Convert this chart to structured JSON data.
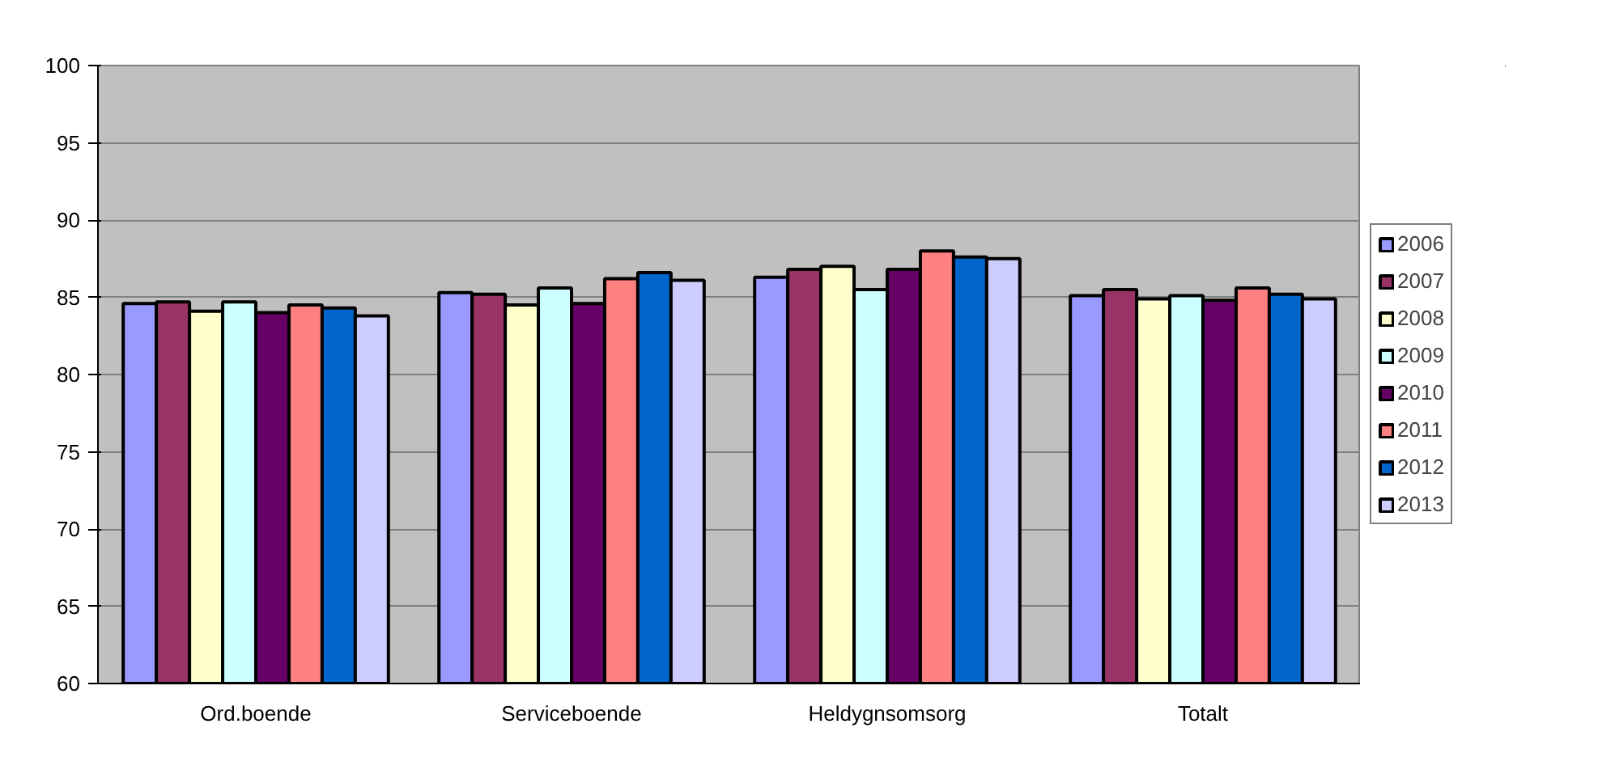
{
  "chart_data": {
    "type": "bar",
    "categories": [
      "Ord.boende",
      "Serviceboende",
      "Heldygnsomsorg",
      "Totalt"
    ],
    "series": [
      {
        "name": "2006",
        "color": "#9999ff",
        "values": [
          84.6,
          85.3,
          86.3,
          85.1
        ]
      },
      {
        "name": "2007",
        "color": "#993366",
        "values": [
          84.7,
          85.2,
          86.8,
          85.5
        ]
      },
      {
        "name": "2008",
        "color": "#ffffcc",
        "values": [
          84.1,
          84.5,
          87.0,
          84.9
        ]
      },
      {
        "name": "2009",
        "color": "#ccffff",
        "values": [
          84.7,
          85.6,
          85.5,
          85.1
        ]
      },
      {
        "name": "2010",
        "color": "#660066",
        "values": [
          84.0,
          84.6,
          86.8,
          84.8
        ]
      },
      {
        "name": "2011",
        "color": "#ff8080",
        "values": [
          84.5,
          86.2,
          88.0,
          85.6
        ]
      },
      {
        "name": "2012",
        "color": "#0066cc",
        "values": [
          84.3,
          86.6,
          87.6,
          85.2
        ]
      },
      {
        "name": "2013",
        "color": "#ccccff",
        "values": [
          83.8,
          86.1,
          87.5,
          84.9
        ]
      }
    ],
    "ylim": [
      60,
      100
    ],
    "yticks": [
      60,
      65,
      70,
      75,
      80,
      85,
      90,
      95,
      100
    ],
    "grid": "y",
    "legend": "right"
  }
}
